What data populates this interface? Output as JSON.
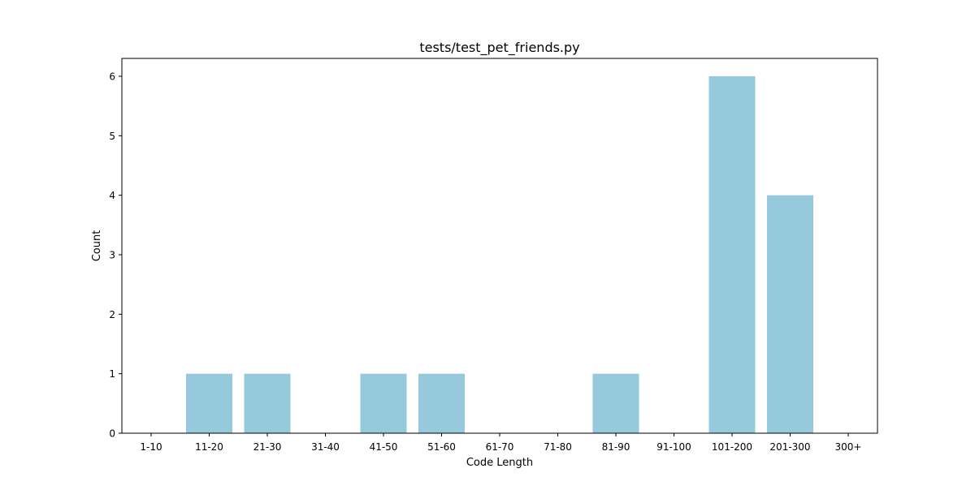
{
  "chart_data": {
    "type": "bar",
    "title": "tests/test_pet_friends.py",
    "xlabel": "Code Length",
    "ylabel": "Count",
    "categories": [
      "1-10",
      "11-20",
      "21-30",
      "31-40",
      "41-50",
      "51-60",
      "61-70",
      "71-80",
      "81-90",
      "91-100",
      "101-200",
      "201-300",
      "300+"
    ],
    "values": [
      0,
      1,
      1,
      0,
      1,
      1,
      0,
      0,
      1,
      0,
      6,
      4,
      0
    ],
    "ylim": [
      0,
      6.3
    ],
    "yticks": [
      0,
      1,
      2,
      3,
      4,
      5,
      6
    ],
    "grid": false,
    "legend": "none",
    "bar_color": "#96c9dc",
    "axis_color": "#000000"
  }
}
